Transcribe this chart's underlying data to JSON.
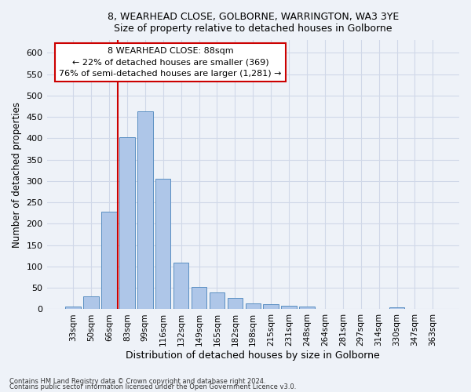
{
  "title1": "8, WEARHEAD CLOSE, GOLBORNE, WARRINGTON, WA3 3YE",
  "title2": "Size of property relative to detached houses in Golborne",
  "xlabel": "Distribution of detached houses by size in Golborne",
  "ylabel": "Number of detached properties",
  "categories": [
    "33sqm",
    "50sqm",
    "66sqm",
    "83sqm",
    "99sqm",
    "116sqm",
    "132sqm",
    "149sqm",
    "165sqm",
    "182sqm",
    "198sqm",
    "215sqm",
    "231sqm",
    "248sqm",
    "264sqm",
    "281sqm",
    "297sqm",
    "314sqm",
    "330sqm",
    "347sqm",
    "363sqm"
  ],
  "values": [
    7,
    30,
    228,
    402,
    463,
    305,
    110,
    53,
    39,
    26,
    14,
    12,
    9,
    6,
    0,
    0,
    0,
    0,
    5,
    0,
    0
  ],
  "bar_color": "#aec6e8",
  "bar_edge_color": "#5a8fc2",
  "grid_color": "#d0d8e8",
  "bg_color": "#eef2f8",
  "vline_color": "#cc0000",
  "annotation_line1": "8 WEARHEAD CLOSE: 88sqm",
  "annotation_line2": "← 22% of detached houses are smaller (369)",
  "annotation_line3": "76% of semi-detached houses are larger (1,281) →",
  "annotation_box_color": "#ffffff",
  "annotation_box_edge": "#cc0000",
  "footer1": "Contains HM Land Registry data © Crown copyright and database right 2024.",
  "footer2": "Contains public sector information licensed under the Open Government Licence v3.0.",
  "ylim": [
    0,
    630
  ],
  "yticks": [
    0,
    50,
    100,
    150,
    200,
    250,
    300,
    350,
    400,
    450,
    500,
    550,
    600
  ]
}
